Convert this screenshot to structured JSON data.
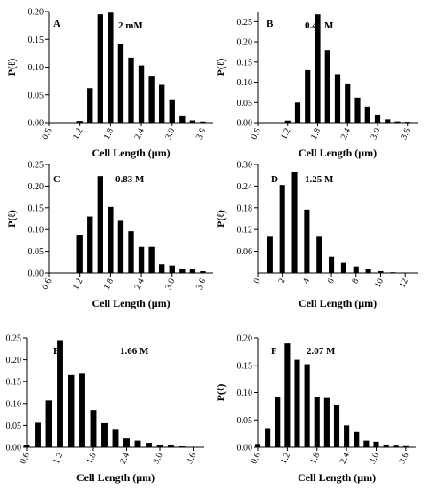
{
  "chart_data": [
    {
      "type": "bar",
      "panel": "A",
      "annotation": "2 mM",
      "xlabel": "Cell Length (μm)",
      "ylabel": "P(ℓ)",
      "xlim": [
        0.6,
        3.8
      ],
      "ylim": [
        0,
        0.2
      ],
      "xticks": [
        "0.6",
        "1.2",
        "1.8",
        "2.4",
        "3.0",
        "3.6"
      ],
      "yticks": [
        "0.00",
        "0.05",
        "0.10",
        "0.15",
        "0.20"
      ],
      "bin_width": 0.2,
      "x": [
        1.2,
        1.4,
        1.6,
        1.8,
        2.0,
        2.2,
        2.4,
        2.6,
        2.8,
        3.0,
        3.2,
        3.4,
        3.6
      ],
      "values": [
        0.003,
        0.062,
        0.195,
        0.198,
        0.142,
        0.117,
        0.103,
        0.083,
        0.068,
        0.042,
        0.013,
        0.004,
        0.002
      ]
    },
    {
      "type": "bar",
      "panel": "B",
      "annotation": "0.41 M",
      "xlabel": "Cell Length (μm)",
      "ylabel": "P(ℓ)",
      "xlim": [
        0.6,
        3.8
      ],
      "ylim": [
        0,
        0.275
      ],
      "xticks": [
        "0.6",
        "1.2",
        "1.8",
        "2.4",
        "3.0",
        "3.6"
      ],
      "yticks": [
        "0.00",
        "0.05",
        "0.10",
        "0.15",
        "0.20",
        "0.25"
      ],
      "bin_width": 0.2,
      "x": [
        1.2,
        1.4,
        1.6,
        1.8,
        2.0,
        2.2,
        2.4,
        2.6,
        2.8,
        3.0,
        3.2,
        3.4,
        3.6
      ],
      "values": [
        0.005,
        0.05,
        0.13,
        0.268,
        0.18,
        0.12,
        0.097,
        0.062,
        0.04,
        0.02,
        0.008,
        0.003,
        0.002
      ]
    },
    {
      "type": "bar",
      "panel": "C",
      "annotation": "0.83 M",
      "xlabel": "Cell Length (μm)",
      "ylabel": "P(ℓ)",
      "xlim": [
        0.6,
        3.8
      ],
      "ylim": [
        0,
        0.25
      ],
      "xticks": [
        "0.6",
        "1.2",
        "1.8",
        "2.4",
        "3.0",
        "3.6"
      ],
      "yticks": [
        "0.00",
        "0.05",
        "0.10",
        "0.15",
        "0.20",
        "0.25"
      ],
      "bin_width": 0.2,
      "x": [
        1.2,
        1.4,
        1.6,
        1.8,
        2.0,
        2.2,
        2.4,
        2.6,
        2.8,
        3.0,
        3.2,
        3.4,
        3.6
      ],
      "values": [
        0.088,
        0.13,
        0.223,
        0.152,
        0.12,
        0.096,
        0.06,
        0.06,
        0.02,
        0.017,
        0.01,
        0.008,
        0.004
      ]
    },
    {
      "type": "bar",
      "panel": "D",
      "annotation": "1.25 M",
      "xlabel": "Cell Length (μm)",
      "ylabel": "P(ℓ)",
      "xlim": [
        0,
        13
      ],
      "ylim": [
        0,
        0.3
      ],
      "xticks": [
        "0",
        "2",
        "4",
        "6",
        "8",
        "10",
        "12"
      ],
      "yticks": [
        "0.06",
        "0.12",
        "0.18",
        "0.24",
        "0.30"
      ],
      "bin_width": 0.8,
      "x": [
        1,
        2,
        3,
        4,
        5,
        6,
        7,
        8,
        9,
        10,
        11,
        12
      ],
      "values": [
        0.1,
        0.243,
        0.28,
        0.175,
        0.1,
        0.045,
        0.028,
        0.018,
        0.01,
        0.005,
        0.002,
        0.001
      ]
    },
    {
      "type": "bar",
      "panel": "E",
      "annotation": "1.66 M",
      "xlabel": "Cell Length (μm)",
      "ylabel": "P(ℓ)",
      "xlim": [
        0.6,
        3.8
      ],
      "ylim": [
        0,
        0.25
      ],
      "xticks": [
        "0.6",
        "1.2",
        "1.8",
        "2.4",
        "3.0",
        "3.6"
      ],
      "yticks": [
        "0.00",
        "0.05",
        "0.10",
        "0.15",
        "0.20",
        "0.25"
      ],
      "bin_width": 0.2,
      "x": [
        0.6,
        0.8,
        1.0,
        1.2,
        1.4,
        1.6,
        1.8,
        2.0,
        2.2,
        2.4,
        2.6,
        2.8,
        3.0,
        3.2,
        3.4,
        3.6
      ],
      "values": [
        0.006,
        0.056,
        0.107,
        0.245,
        0.165,
        0.168,
        0.085,
        0.055,
        0.04,
        0.02,
        0.015,
        0.01,
        0.006,
        0.004,
        0.002,
        0.001
      ]
    },
    {
      "type": "bar",
      "panel": "F",
      "annotation": "2.07 M",
      "xlabel": "Cell Length (μm)",
      "ylabel": "P(ℓ)",
      "xlim": [
        0.6,
        3.8
      ],
      "ylim": [
        0,
        0.2
      ],
      "xticks": [
        "0.6",
        "1.2",
        "1.8",
        "2.4",
        "3.0",
        "3.6"
      ],
      "yticks": [
        "0.00",
        "0.05",
        "0.10",
        "0.15",
        "0.20"
      ],
      "bin_width": 0.2,
      "x": [
        0.6,
        0.8,
        1.0,
        1.2,
        1.4,
        1.6,
        1.8,
        2.0,
        2.2,
        2.4,
        2.6,
        2.8,
        3.0,
        3.2,
        3.4,
        3.6
      ],
      "values": [
        0.006,
        0.035,
        0.092,
        0.19,
        0.16,
        0.152,
        0.092,
        0.09,
        0.078,
        0.04,
        0.028,
        0.012,
        0.01,
        0.005,
        0.003,
        0.002
      ]
    }
  ]
}
